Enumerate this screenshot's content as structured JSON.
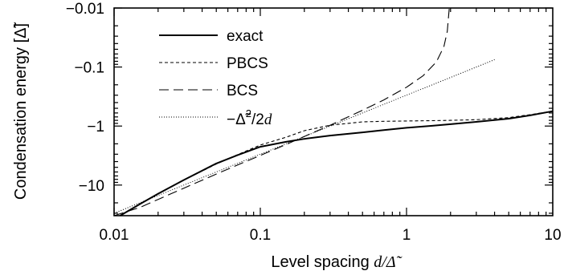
{
  "chart_data": {
    "type": "line",
    "xscale": "log",
    "yscale": "log",
    "y_axis_orientation": "descending magnitude (more negative downward)",
    "xlim": [
      0.01,
      10
    ],
    "ylim": [
      -33,
      -0.01
    ],
    "xlabel": "Level spacing d/Δ̃",
    "ylabel": "Condensation energy [Δ̃]",
    "x_ticks": [
      "0.01",
      "0.1",
      "1",
      "10"
    ],
    "y_ticks": [
      "−0.01",
      "−0.1",
      "−1",
      "−10"
    ],
    "grid": false,
    "legend_position": "top-left",
    "series": [
      {
        "name": "exact",
        "line_style": "solid",
        "x": [
          0.011,
          0.015,
          0.02,
          0.03,
          0.05,
          0.07,
          0.1,
          0.15,
          0.2,
          0.3,
          0.5,
          0.7,
          1,
          1.5,
          2,
          3,
          5,
          7,
          10
        ],
        "y": [
          -33,
          -21,
          -14,
          -8.2,
          -4.3,
          -3.1,
          -2.25,
          -1.85,
          -1.65,
          -1.45,
          -1.28,
          -1.17,
          -1.07,
          -0.99,
          -0.93,
          -0.85,
          -0.75,
          -0.66,
          -0.56
        ]
      },
      {
        "name": "PBCS",
        "line_style": "dashed",
        "x": [
          0.011,
          0.015,
          0.02,
          0.03,
          0.05,
          0.07,
          0.1,
          0.15,
          0.2,
          0.3,
          0.5,
          0.7,
          1,
          1.5,
          2,
          3,
          5,
          7,
          10
        ],
        "y": [
          -33,
          -21,
          -14,
          -8.2,
          -4.4,
          -3.05,
          -2.1,
          -1.55,
          -1.2,
          -0.97,
          -0.85,
          -0.83,
          -0.82,
          -0.81,
          -0.8,
          -0.78,
          -0.72,
          -0.64,
          -0.56
        ]
      },
      {
        "name": "BCS",
        "line_style": "long-dashed",
        "x": [
          0.01,
          0.015,
          0.02,
          0.03,
          0.05,
          0.07,
          0.1,
          0.15,
          0.2,
          0.3,
          0.5,
          0.7,
          1,
          1.3,
          1.6,
          1.8,
          1.9,
          1.96
        ],
        "y": [
          -33,
          -24,
          -17.5,
          -11.3,
          -6.5,
          -4.55,
          -3.15,
          -2.05,
          -1.5,
          -0.97,
          -0.54,
          -0.36,
          -0.22,
          -0.14,
          -0.082,
          -0.045,
          -0.025,
          -0.01
        ]
      },
      {
        "name": "−Δ̃²/2d",
        "line_style": "dotted",
        "x": [
          0.01,
          0.02,
          0.05,
          0.1,
          0.2,
          0.5,
          1,
          2,
          4
        ],
        "y": [
          -30,
          -15,
          -6,
          -3,
          -1.5,
          -0.6,
          -0.3,
          -0.15,
          -0.075
        ]
      }
    ]
  },
  "legend": {
    "entries": [
      {
        "label": "exact",
        "style": "solid"
      },
      {
        "label": "PBCS",
        "style": "dashed"
      },
      {
        "label": "BCS",
        "style": "long-dashed"
      },
      {
        "label_prefix": "−Δ̃",
        "label_sup": "2",
        "label_suffix": "/2",
        "label_var": "d",
        "style": "dotted"
      }
    ]
  },
  "labels": {
    "xlabel_prefix": "Level spacing ",
    "xlabel_var": "d/Δ̃",
    "ylabel": "Condensation energy [Δ̃]"
  }
}
